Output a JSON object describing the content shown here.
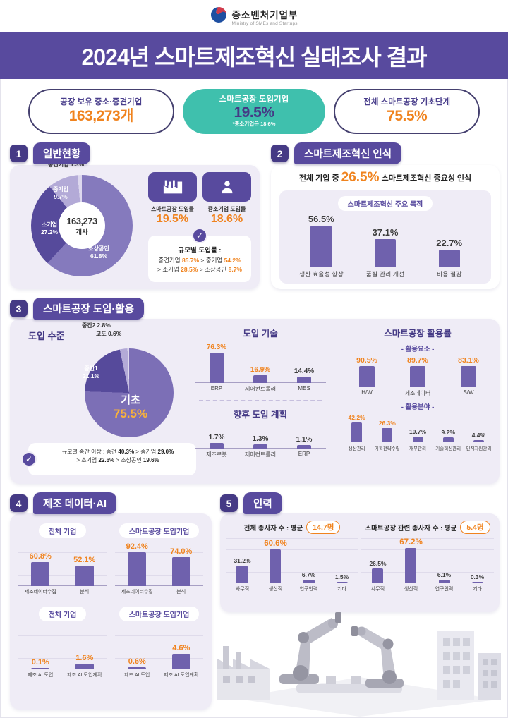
{
  "header": {
    "ministry_ko": "중소벤처기업부",
    "ministry_en": "Ministry of SMEs and Startups",
    "title": "2024년 스마트제조혁신 실태조사 결과"
  },
  "pills": [
    {
      "label": "공장 보유 중소·중견기업",
      "value": "163,273개"
    },
    {
      "label": "스마트공장 도입기업",
      "value": "19.5%",
      "note": "*중소기업은 18.6%"
    },
    {
      "label": "전체 스마트공장 기초단계",
      "value": "75.5%"
    }
  ],
  "colors": {
    "purple": "#584a9e",
    "purple_dark": "#453a85",
    "bar_purple": "#6f61ad",
    "teal": "#3fc0ad",
    "orange": "#f0831e",
    "panel": "#efecf6"
  },
  "sections": {
    "s1": {
      "num": "1",
      "title": "일반현황",
      "stats": [
        {
          "label": "스마트공장 도입률",
          "value": "19.5%"
        },
        {
          "label": "중소기업 도입률",
          "value": "18.6%"
        }
      ],
      "note_title": "규모별 도입률 :",
      "note_line1": [
        {
          "t": "중견기업 "
        },
        {
          "t": "85.7%",
          "e": 1
        },
        {
          "t": " > 중기업 "
        },
        {
          "t": "54.2%",
          "e": 1
        }
      ],
      "note_line2": [
        {
          "t": "> 소기업 "
        },
        {
          "t": "28.5%",
          "e": 1
        },
        {
          "t": " > 소상공인 "
        },
        {
          "t": "8.7%",
          "e": 1
        }
      ]
    },
    "s2": {
      "num": "2",
      "title": "스마트제조혁신 인식",
      "heading": [
        {
          "t": "전체 기업 중 "
        },
        {
          "t": "26.5%",
          "e": 1,
          "big": 1
        },
        {
          "t": " 스마트제조혁신 중요성 인식"
        }
      ]
    },
    "s3": {
      "num": "3",
      "title": "스마트공장 도입·활용",
      "level_label": "도입 수준",
      "usage_title": "스마트공장 활용률",
      "note_line1": [
        {
          "t": "규모별 중간 이상 : 중견 "
        },
        {
          "t": "40.3%",
          "b": 1
        },
        {
          "t": " > 중기업 "
        },
        {
          "t": "29.0%",
          "b": 1
        }
      ],
      "note_line2": [
        {
          "t": "> 소기업 "
        },
        {
          "t": "22.6%",
          "b": 1
        },
        {
          "t": " > 소상공인 "
        },
        {
          "t": "19.6%",
          "b": 1
        }
      ]
    },
    "s4": {
      "num": "4",
      "title": "제조 데이터·AI"
    },
    "s5": {
      "num": "5",
      "title": "인력"
    }
  },
  "chart_data": [
    {
      "id": "company-size",
      "type": "pie",
      "labels": [
        "소상공인",
        "소기업",
        "중기업",
        "중견기업"
      ],
      "values": [
        61.8,
        27.2,
        9.7,
        1.3
      ],
      "values_pct": [
        "61.8%",
        "27.2%",
        "9.7%",
        "1.3%"
      ],
      "colors": [
        "#857abd",
        "#564a9b",
        "#b3aad7",
        "#ddd8ee"
      ],
      "center_value": "163,273",
      "center_unit": "개사"
    },
    {
      "id": "innovation-purpose",
      "type": "bar",
      "title": "스마트제조혁신 주요 목적",
      "labels": [
        "생산 효율성 향상",
        "품질 관리 개선",
        "비용 절감"
      ],
      "values": [
        56.5,
        37.1,
        22.7
      ],
      "ymax": 70,
      "emph": [
        false,
        false,
        false
      ]
    },
    {
      "id": "adoption-level",
      "type": "pie",
      "labels": [
        "기초",
        "중간1",
        "중간2",
        "고도"
      ],
      "values": [
        75.5,
        21.1,
        2.8,
        0.6
      ],
      "values_pct": [
        "75.5%",
        "21.1%",
        "2.8%",
        "0.6%"
      ],
      "colors": [
        "#7c6fb6",
        "#564a9b",
        "#b3aad7",
        "#ddd8ee"
      ],
      "big_label": "기초",
      "big_value": "75.5%"
    },
    {
      "id": "adopted-tech",
      "type": "bar",
      "title": "도입 기술",
      "labels": [
        "ERP",
        "제어컨트롤러",
        "MES"
      ],
      "values": [
        76.3,
        16.9,
        14.4
      ],
      "ymax": 88,
      "emph": [
        true,
        true,
        false
      ]
    },
    {
      "id": "future-plan",
      "type": "bar",
      "title": "향후 도입 계획",
      "labels": [
        "제조로봇",
        "제어컨트롤러",
        "ERP"
      ],
      "values": [
        1.7,
        1.3,
        1.1
      ],
      "ymax": 7.5,
      "emph": [
        false,
        false,
        false
      ]
    },
    {
      "id": "usage-elements",
      "type": "bar",
      "title": "- 활용요소 -",
      "labels": [
        "H/W",
        "제조데이터",
        "S/W"
      ],
      "values": [
        90.5,
        89.7,
        83.1
      ],
      "ymax": 115,
      "emph": [
        true,
        true,
        true
      ]
    },
    {
      "id": "usage-fields",
      "type": "bar",
      "title": "- 활용분야 -",
      "labels": [
        "생산관리",
        "기획전략수립",
        "재무관리",
        "기술혁신관리",
        "인적자원관리"
      ],
      "values": [
        42.2,
        26.3,
        10.7,
        9.2,
        4.4
      ],
      "ymax": 52,
      "emph": [
        true,
        true,
        false,
        false,
        false
      ]
    },
    {
      "id": "all-firms-data",
      "type": "bar",
      "group": "전체 기업",
      "labels": [
        "제조데이터수집",
        "분석"
      ],
      "values": [
        60.8,
        52.1
      ],
      "ymax": 112,
      "emph": [
        true,
        true
      ]
    },
    {
      "id": "smart-firms-data",
      "type": "bar",
      "group": "스마트공장 도입기업",
      "labels": [
        "제조데이터수집",
        "분석"
      ],
      "values": [
        92.4,
        74.0
      ],
      "ymax": 112,
      "emph": [
        true,
        true
      ]
    },
    {
      "id": "all-firms-ai",
      "type": "bar",
      "group": "전체 기업",
      "labels": [
        "제조 AI 도입",
        "제조 AI 도입계획"
      ],
      "values": [
        0.1,
        1.6
      ],
      "ymax": 13,
      "emph": [
        true,
        true
      ]
    },
    {
      "id": "smart-firms-ai",
      "type": "bar",
      "group": "스마트공장 도입기업",
      "labels": [
        "제조 AI 도입",
        "제조 AI 도입계획"
      ],
      "values": [
        0.6,
        4.6
      ],
      "ymax": 13,
      "emph": [
        true,
        true
      ]
    },
    {
      "id": "total-workers",
      "type": "bar",
      "title": "전체 종사자 수 : 평균",
      "badge": "14.7명",
      "labels": [
        "사무직",
        "생산직",
        "연구인력",
        "기타"
      ],
      "values": [
        31.2,
        60.6,
        6.7,
        1.5
      ],
      "ymax": 80,
      "emph": [
        false,
        true,
        false,
        false
      ]
    },
    {
      "id": "smart-workers",
      "type": "bar",
      "title": "스마트공장 관련 종사자 수 : 평균",
      "badge": "5.4명",
      "labels": [
        "사무직",
        "생산직",
        "연구인력",
        "기타"
      ],
      "values": [
        26.5,
        67.2,
        6.1,
        0.3
      ],
      "ymax": 80,
      "emph": [
        false,
        true,
        false,
        false
      ]
    }
  ]
}
